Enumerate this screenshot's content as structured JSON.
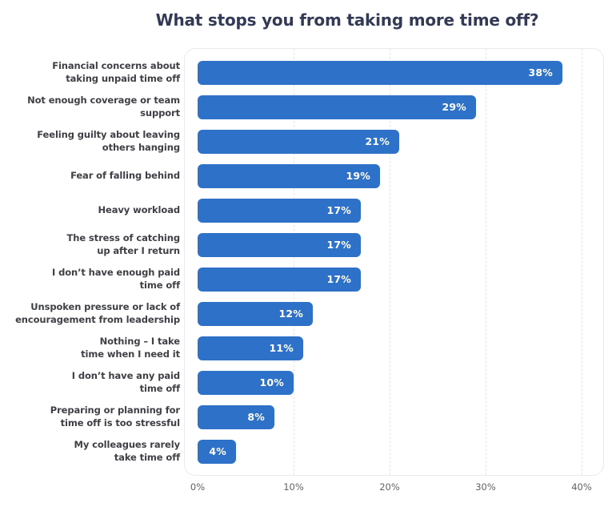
{
  "title": "What stops you from taking more time off?",
  "chart_data": {
    "type": "bar",
    "orientation": "horizontal",
    "title": "What stops you from taking more time off?",
    "categories": [
      "Financial concerns about\ntaking unpaid time off",
      "Not enough coverage or team\nsupport",
      "Feeling guilty about leaving\nothers hanging",
      "Fear of falling behind",
      "Heavy workload",
      "The stress of catching\nup after I return",
      "I don’t have enough paid\ntime off",
      "Unspoken pressure or lack of\nencouragement from leadership",
      "Nothing – I take\ntime when I need it",
      "I don’t have any paid\ntime off",
      "Preparing or planning for\ntime off is too stressful",
      "My colleagues rarely\ntake time off"
    ],
    "values": [
      38,
      29,
      21,
      19,
      17,
      17,
      17,
      12,
      11,
      10,
      8,
      4
    ],
    "value_labels": [
      "38%",
      "29%",
      "21%",
      "19%",
      "17%",
      "17%",
      "17%",
      "12%",
      "11%",
      "10%",
      "8%",
      "4%"
    ],
    "xlabel": "",
    "ylabel": "",
    "xlim": [
      0,
      40
    ],
    "x_ticks": [
      "0%",
      "10%",
      "20%",
      "30%",
      "40%"
    ],
    "x_tick_values": [
      0,
      10,
      20,
      30,
      40
    ],
    "grid": "vertical-dashed",
    "legend": "none",
    "bar_color": "#2d72c8",
    "value_label_color": "#ffffff"
  },
  "colors": {
    "background": "#ffffff",
    "title": "#333a56",
    "category_label": "#3f4045",
    "tick_label": "#5f6368",
    "card_border": "#e8eaee",
    "gridline": "#e2e4e9"
  }
}
